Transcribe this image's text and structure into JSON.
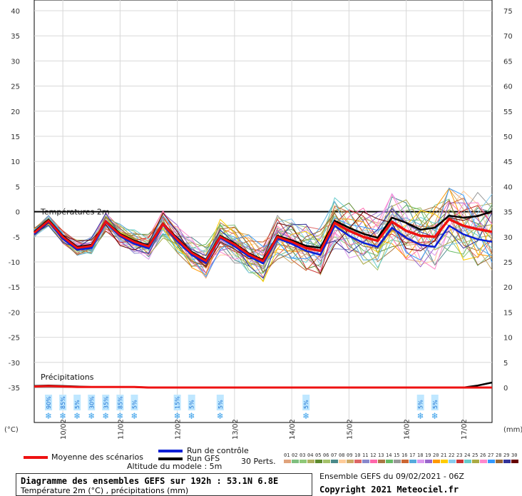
{
  "chart_data": {
    "type": "line",
    "title": "Diagramme des ensembles GEFS sur 192h : 53.1N 6.8E",
    "subtitle": "Température 2m (°C) , précipitations (mm)",
    "temp_label": "Températures 2m",
    "precip_label": "Précipitations",
    "y_left_unit": "(°C)",
    "y_right_unit": "(mm)",
    "altitude_label": "Altitude du modele : 5m",
    "x_ticks": [
      "10/02",
      "11/02",
      "12/02",
      "13/02",
      "14/02",
      "15/02",
      "16/02",
      "17/02"
    ],
    "ylim": [
      -40,
      40
    ],
    "y_left_ticks": [
      40,
      35,
      30,
      25,
      20,
      15,
      10,
      5,
      0,
      -5,
      -10,
      -15,
      -20,
      -25,
      -30,
      -35
    ],
    "y_right_ticks": [
      75,
      70,
      65,
      60,
      55,
      50,
      45,
      40,
      35,
      30,
      25,
      20,
      15,
      10,
      5,
      0
    ],
    "x_hours": [
      0,
      6,
      12,
      18,
      24,
      30,
      36,
      42,
      48,
      54,
      60,
      66,
      72,
      78,
      84,
      90,
      96,
      102,
      108,
      114,
      120,
      126,
      132,
      138,
      144,
      150,
      156,
      162,
      168,
      174,
      180,
      186,
      192
    ],
    "series": [
      {
        "name": "Moyenne des scénarios",
        "color": "#ee1111",
        "values": [
          -4.2,
          -1.8,
          -5.0,
          -7.2,
          -6.8,
          -2.0,
          -4.6,
          -6.0,
          -6.9,
          -2.5,
          -5.5,
          -8.2,
          -9.8,
          -5.0,
          -6.5,
          -8.5,
          -9.8,
          -5.0,
          -6.0,
          -7.2,
          -7.8,
          -2.2,
          -3.8,
          -5.0,
          -5.8,
          -2.0,
          -3.8,
          -4.8,
          -5.0,
          -1.5,
          -2.8,
          -3.5,
          -4.0
        ]
      },
      {
        "name": "Run de contrôle",
        "color": "#0a1fd6",
        "values": [
          -4.5,
          -2.0,
          -5.4,
          -7.6,
          -7.2,
          -2.1,
          -4.9,
          -6.4,
          -7.3,
          -2.6,
          -5.9,
          -8.6,
          -10.2,
          -5.2,
          -6.9,
          -8.9,
          -10.3,
          -5.3,
          -6.4,
          -7.8,
          -8.6,
          -2.8,
          -4.8,
          -6.2,
          -7.0,
          -3.2,
          -5.2,
          -6.6,
          -7.0,
          -2.8,
          -4.5,
          -5.5,
          -6.0
        ]
      },
      {
        "name": "Run GFS",
        "color": "#000000",
        "values": [
          -4.0,
          -1.6,
          -4.8,
          -7.0,
          -6.6,
          -1.9,
          -4.4,
          -5.8,
          -6.7,
          -2.4,
          -5.3,
          -8.0,
          -9.6,
          -4.8,
          -6.3,
          -8.3,
          -9.6,
          -4.8,
          -5.7,
          -6.8,
          -7.2,
          -1.8,
          -3.2,
          -4.4,
          -5.2,
          -1.2,
          -2.2,
          -3.6,
          -3.2,
          -0.8,
          -1.2,
          -0.9,
          0.1
        ]
      }
    ],
    "perturbations_label": "30 Perts.",
    "perturbation_ids": [
      "01",
      "02",
      "03",
      "04",
      "05",
      "06",
      "07",
      "08",
      "09",
      "10",
      "11",
      "12",
      "13",
      "14",
      "15",
      "16",
      "17",
      "18",
      "19",
      "20",
      "21",
      "22",
      "23",
      "24",
      "25",
      "26",
      "27",
      "28",
      "29",
      "30"
    ],
    "perturbation_colors": [
      "#e0a37c",
      "#7fbf7f",
      "#8fc878",
      "#b0b060",
      "#5c8a2e",
      "#a5c26b",
      "#4a8a8a",
      "#ffcc99",
      "#ccaa66",
      "#dd6666",
      "#8888cc",
      "#ff66aa",
      "#aa7744",
      "#66bb66",
      "#999999",
      "#cc6633",
      "#55aadd",
      "#dd99ee",
      "#9966cc",
      "#ff9900",
      "#ffcc00",
      "#88ccee",
      "#cc3333",
      "#66cccc",
      "#aaaa44",
      "#ff88cc",
      "#3399ff",
      "#996633",
      "#333399",
      "#660000"
    ],
    "snow_probabilities": [
      {
        "hour": 6,
        "label": "90%"
      },
      {
        "hour": 12,
        "label": "85%"
      },
      {
        "hour": 18,
        "label": "5%"
      },
      {
        "hour": 24,
        "label": "30%"
      },
      {
        "hour": 30,
        "label": "35%"
      },
      {
        "hour": 36,
        "label": "85%"
      },
      {
        "hour": 42,
        "label": "5%"
      },
      {
        "hour": 60,
        "label": "15%"
      },
      {
        "hour": 66,
        "label": "5%"
      },
      {
        "hour": 78,
        "label": "5%"
      },
      {
        "hour": 114,
        "label": "5%"
      },
      {
        "hour": 162,
        "label": "5%"
      },
      {
        "hour": 168,
        "label": "5%"
      }
    ],
    "precip_mean_mm": [
      0.2,
      0.3,
      0.2,
      0.1,
      0.1,
      0.1,
      0.1,
      0.1,
      0.0,
      0.0,
      0.0,
      0.0,
      0.0,
      0.0,
      0.0,
      0.0,
      0.0,
      0.0,
      0.0,
      0.0,
      0.0,
      0.0,
      0.0,
      0.0,
      0.0,
      0.0,
      0.0,
      0.0,
      0.0,
      0.0,
      0.0,
      0.0,
      0.0
    ],
    "precip_gfs_mm": [
      0.3,
      0.4,
      0.3,
      0.2,
      0.1,
      0.1,
      0.1,
      0.1,
      0.0,
      0.0,
      0.0,
      0.0,
      0.0,
      0.0,
      0.0,
      0.0,
      0.0,
      0.0,
      0.0,
      0.0,
      0.0,
      0.0,
      0.0,
      0.0,
      0.0,
      0.0,
      0.0,
      0.0,
      0.0,
      0.0,
      0.0,
      0.4,
      1.0
    ],
    "grid": true
  },
  "footer": {
    "ensemble_label": "Ensemble GEFS du 09/02/2021 - 06Z",
    "copyright": "Copyright 2021 Meteociel.fr"
  }
}
